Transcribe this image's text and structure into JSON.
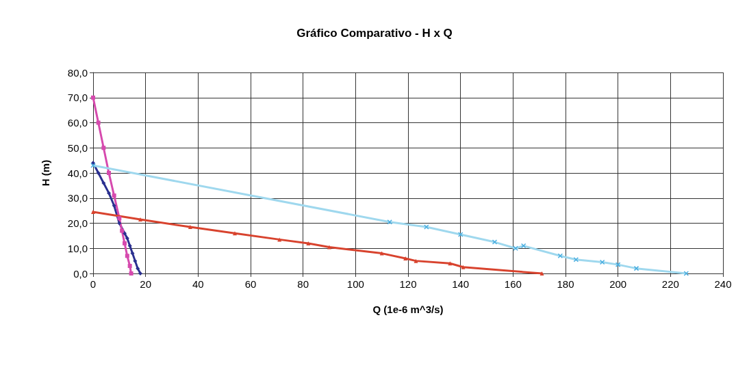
{
  "chart_data": {
    "type": "line",
    "title": "Gráfico Comparativo - H x Q",
    "xlabel": "Q (1e-6 m^3/s)",
    "ylabel": "H (m)",
    "xlim": [
      0,
      240
    ],
    "xticks": [
      0,
      20,
      40,
      60,
      80,
      100,
      120,
      140,
      160,
      180,
      200,
      220,
      240
    ],
    "ylim": [
      0,
      80
    ],
    "yticks": [
      {
        "value": 0,
        "label": "0,0"
      },
      {
        "value": 10,
        "label": "10,0"
      },
      {
        "value": 20,
        "label": "20,0"
      },
      {
        "value": 30,
        "label": "30,0"
      },
      {
        "value": 40,
        "label": "40,0"
      },
      {
        "value": 50,
        "label": "50,0"
      },
      {
        "value": 60,
        "label": "60,0"
      },
      {
        "value": 70,
        "label": "70,0"
      },
      {
        "value": 80,
        "label": "80,0"
      }
    ],
    "grid": true,
    "line_style": "solid",
    "series": [
      {
        "color": "#2b3090",
        "marker": "diamond",
        "x": [
          0,
          2,
          4,
          6,
          8,
          10,
          12,
          13,
          14,
          15,
          16,
          17,
          18
        ],
        "values": [
          44,
          40,
          36,
          32,
          27,
          20,
          16,
          14,
          11,
          8,
          5,
          2,
          0
        ]
      },
      {
        "color": "#d64aae",
        "marker": "square",
        "x": [
          0,
          2,
          4,
          6,
          8,
          10,
          11,
          12,
          13,
          14,
          14.5
        ],
        "values": [
          70,
          60,
          50,
          40,
          31,
          22,
          17,
          12,
          7,
          3,
          0
        ]
      },
      {
        "color": "#d8432e",
        "marker": "triangle",
        "x": [
          0,
          18,
          37,
          54,
          71,
          82,
          90,
          110,
          119,
          123,
          136,
          141,
          171
        ],
        "values": [
          24.5,
          21.5,
          18.5,
          16,
          13.5,
          12,
          10.5,
          8,
          6,
          5,
          4,
          2.5,
          0
        ]
      },
      {
        "color": "#9fd8ee",
        "marker": "cross",
        "x": [
          0,
          113,
          127,
          140,
          153,
          161,
          164,
          178,
          184,
          194,
          200,
          207,
          226
        ],
        "values": [
          43,
          20.5,
          18.5,
          15.5,
          12.5,
          10,
          11,
          7,
          5.5,
          4.5,
          3.5,
          2,
          0
        ]
      }
    ]
  }
}
